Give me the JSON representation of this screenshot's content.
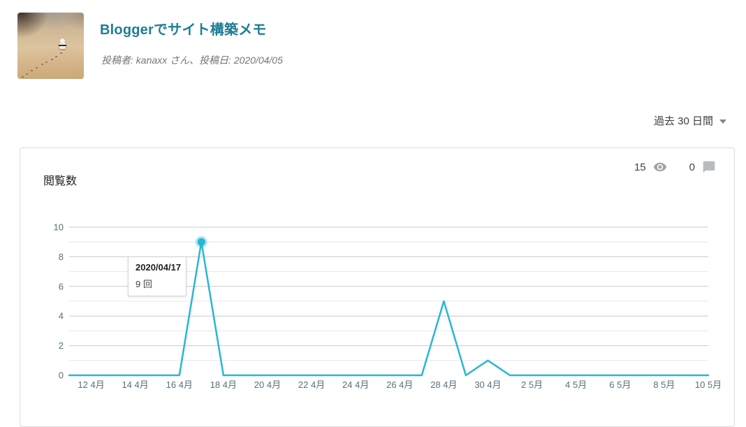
{
  "post": {
    "title": "Bloggerでサイト構築メモ",
    "byline": "投稿者: kanaxx さん、投稿日: 2020/04/05",
    "thumbnail_alt": "beach-photo-thumbnail"
  },
  "date_range": {
    "selected": "過去 30 日間"
  },
  "stats_card": {
    "metric_label": "閲覧数",
    "views_count": "15",
    "comments_count": "0"
  },
  "tooltip": {
    "date": "2020/04/17",
    "value": "9 回"
  },
  "colors": {
    "title_link": "#1e7d96",
    "line": "#29b6d3",
    "grid_major": "#c9c9c9",
    "grid_minor": "#e7e7e7",
    "tick_text": "#56707c",
    "eye_icon": "#a2a2a2",
    "comment_icon": "#b9bcbe"
  },
  "chart_data": {
    "type": "line",
    "title": "閲覧数",
    "x": [
      "2020/04/11",
      "2020/04/12",
      "2020/04/13",
      "2020/04/14",
      "2020/04/15",
      "2020/04/16",
      "2020/04/17",
      "2020/04/18",
      "2020/04/19",
      "2020/04/20",
      "2020/04/21",
      "2020/04/22",
      "2020/04/23",
      "2020/04/24",
      "2020/04/25",
      "2020/04/26",
      "2020/04/27",
      "2020/04/28",
      "2020/04/29",
      "2020/04/30",
      "2020/05/01",
      "2020/05/02",
      "2020/05/03",
      "2020/05/04",
      "2020/05/05",
      "2020/05/06",
      "2020/05/07",
      "2020/05/08",
      "2020/05/09",
      "2020/05/10"
    ],
    "values": [
      0,
      0,
      0,
      0,
      0,
      0,
      9,
      0,
      0,
      0,
      0,
      0,
      0,
      0,
      0,
      0,
      0,
      5,
      0,
      1,
      0,
      0,
      0,
      0,
      0,
      0,
      0,
      0,
      0,
      0
    ],
    "x_tick_labels": [
      "12 4月",
      "14 4月",
      "16 4月",
      "18 4月",
      "20 4月",
      "22 4月",
      "24 4月",
      "26 4月",
      "28 4月",
      "30 4月",
      "2 5月",
      "4 5月",
      "6 5月",
      "8 5月",
      "10 5月"
    ],
    "x_tick_indexes": [
      1,
      3,
      5,
      7,
      9,
      11,
      13,
      15,
      17,
      19,
      21,
      23,
      25,
      27,
      29
    ],
    "y_ticks": [
      0,
      2,
      4,
      6,
      8,
      10
    ],
    "ylim": [
      0,
      10
    ],
    "grid": true,
    "legend": "none",
    "highlight": {
      "index": 6,
      "value": 9,
      "label": "2020/04/17",
      "text": "9 回"
    }
  }
}
